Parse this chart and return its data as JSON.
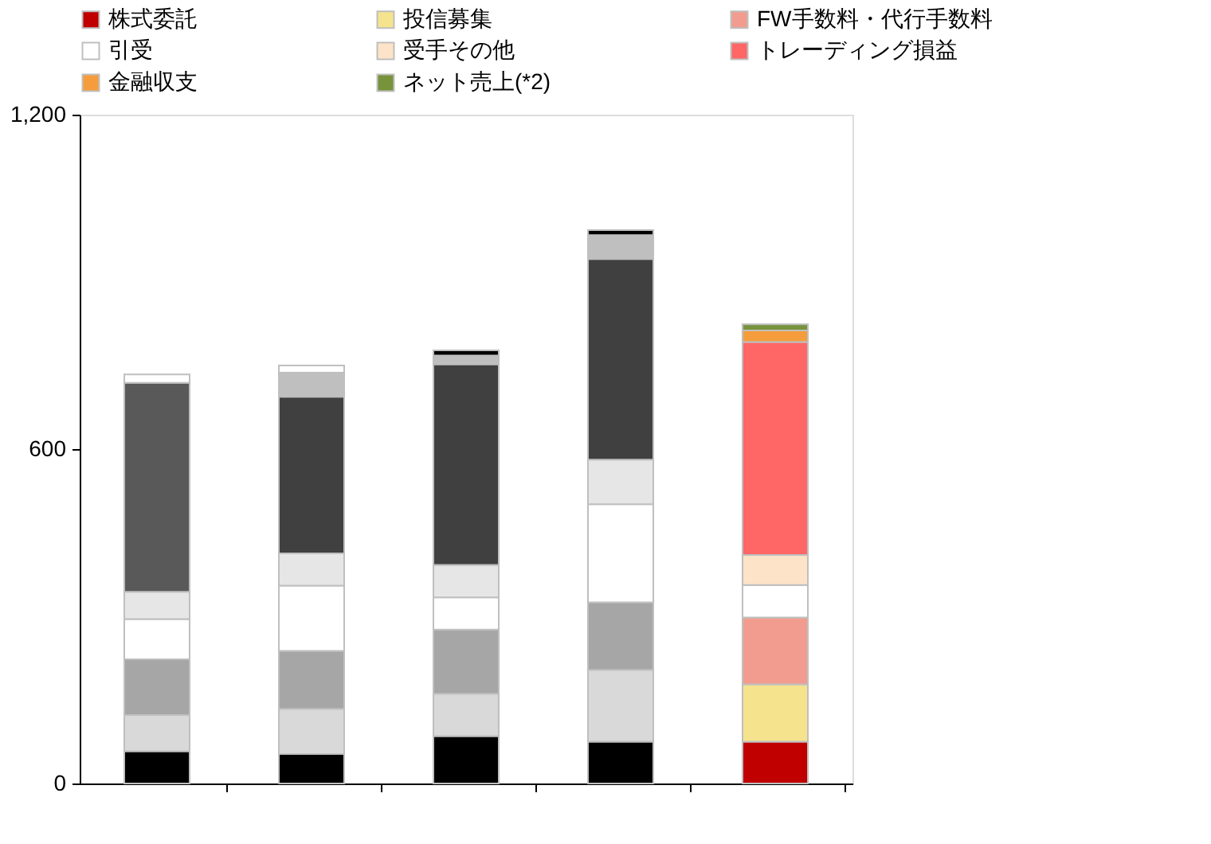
{
  "chart_data": {
    "type": "bar",
    "stacked": true,
    "categories": [
      null,
      null,
      null,
      null,
      null
    ],
    "ylim": [
      0,
      1200
    ],
    "yticks": [
      0,
      600,
      {
        "value": 1200,
        "label": "1,200"
      }
    ],
    "grid": false,
    "legend": "top",
    "series": [
      {
        "name": "株式委託",
        "color": "#c00000",
        "values": [
          58,
          53,
          85,
          75,
          75
        ],
        "colors": [
          "#000000",
          "#000000",
          "#000000",
          "#000000",
          "#c00000"
        ]
      },
      {
        "name": "投信募集",
        "color": "#f5e38e",
        "values": [
          65,
          81,
          76,
          129,
          103
        ],
        "colors": [
          "#d9d9d9",
          "#d9d9d9",
          "#d9d9d9",
          "#d9d9d9",
          "#f5e38e"
        ]
      },
      {
        "name": "FW手数料・代行手数料",
        "color": "#f19c8e",
        "values": [
          100,
          104,
          115,
          121,
          120
        ],
        "colors": [
          "#a6a6a6",
          "#a6a6a6",
          "#a6a6a6",
          "#a6a6a6",
          "#f19c8e"
        ]
      },
      {
        "name": "引受",
        "color": "#ffffff",
        "values": [
          72,
          117,
          58,
          176,
          58
        ],
        "colors": [
          "#ffffff",
          "#ffffff",
          "#ffffff",
          "#ffffff",
          "#ffffff"
        ]
      },
      {
        "name": "受手その他",
        "color": "#fde3c8",
        "values": [
          49,
          58,
          58,
          80,
          54
        ],
        "colors": [
          "#e6e6e6",
          "#e6e6e6",
          "#e6e6e6",
          "#e6e6e6",
          "#fde3c8"
        ]
      },
      {
        "name": "トレーディング損益",
        "color": "#ff6666",
        "values": [
          375,
          281,
          360,
          360,
          382
        ],
        "colors": [
          "#595959",
          "#404040",
          "#404040",
          "#404040",
          "#ff6666"
        ]
      },
      {
        "name": "金融収支",
        "color": "#f59d3d",
        "values": [
          0,
          43,
          16,
          43,
          21
        ],
        "colors": [
          "#bfbfbf",
          "#bfbfbf",
          "#bfbfbf",
          "#bfbfbf",
          "#f59d3d"
        ]
      },
      {
        "name": "ネット売上(*2)",
        "color": "#77933c",
        "values": [
          15,
          13,
          9,
          9,
          11
        ],
        "colors": [
          "#ffffff",
          "#ffffff",
          "#000000",
          "#000000",
          "#77933c"
        ]
      }
    ]
  }
}
